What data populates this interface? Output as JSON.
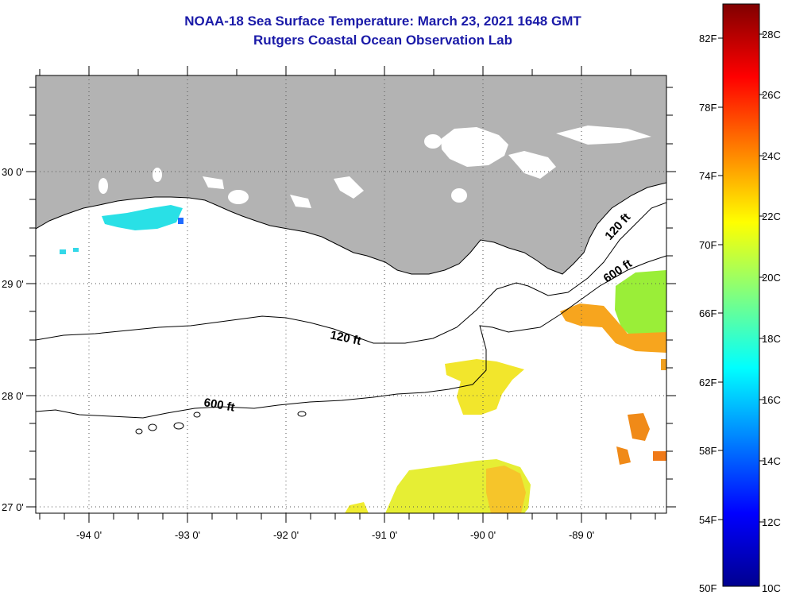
{
  "title": {
    "line1": "NOAA-18 Sea Surface Temperature:  March 23, 2021 1648 GMT",
    "line2": "Rutgers Coastal Ocean Observation Lab"
  },
  "map": {
    "lat_labels": [
      "30 0'",
      "29 0'",
      "28 0'",
      "27 0'"
    ],
    "lon_labels": [
      "-94 0'",
      "-93 0'",
      "-92 0'",
      "-91 0'",
      "-90 0'",
      "-89 0'"
    ],
    "contour_labels": [
      "120 ft",
      "120 ft",
      "600 ft",
      "600 ft"
    ],
    "land_color": "#b3b3b3"
  },
  "colorbar": {
    "f_labels": [
      "82F",
      "78F",
      "74F",
      "70F",
      "66F",
      "62F",
      "58F",
      "54F",
      "50F"
    ],
    "c_labels": [
      "28C",
      "26C",
      "24C",
      "22C",
      "20C",
      "18C",
      "16C",
      "14C",
      "12C",
      "10C"
    ],
    "scale": "jet",
    "range_c": [
      10,
      29
    ]
  }
}
